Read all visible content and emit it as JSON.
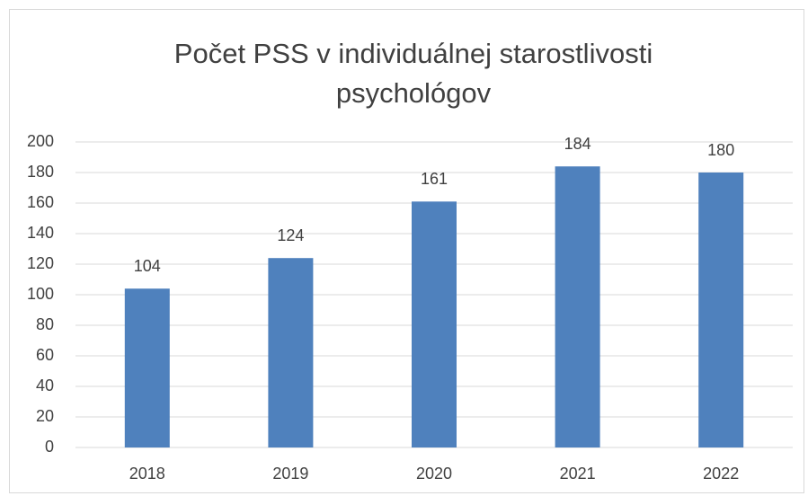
{
  "chart_data": {
    "type": "bar",
    "title": "Počet PSS v individuálnej starostlivosti psychológov",
    "categories": [
      "2018",
      "2019",
      "2020",
      "2021",
      "2022"
    ],
    "values": [
      104,
      124,
      161,
      184,
      180
    ],
    "color": "#4f81bd",
    "ylim": [
      0,
      200
    ],
    "yticks": [
      0,
      20,
      40,
      60,
      80,
      100,
      120,
      140,
      160,
      180,
      200
    ],
    "grid": true,
    "data_labels": true
  }
}
